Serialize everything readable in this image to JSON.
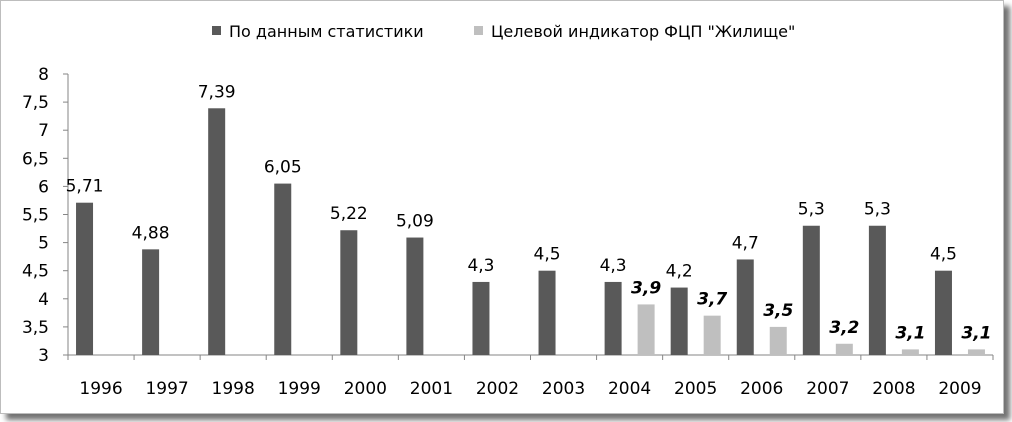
{
  "chart_data": {
    "type": "bar",
    "categories": [
      "1996",
      "1997",
      "1998",
      "1999",
      "2000",
      "2001",
      "2002",
      "2003",
      "2004",
      "2005",
      "2006",
      "2007",
      "2008",
      "2009"
    ],
    "series": [
      {
        "name": "По данным статистики",
        "color": "#595959",
        "values": [
          5.71,
          4.88,
          7.39,
          6.05,
          5.22,
          5.09,
          4.3,
          4.5,
          4.3,
          4.2,
          4.7,
          5.3,
          5.3,
          4.5
        ],
        "labels": [
          "5,71",
          "4,88",
          "7,39",
          "6,05",
          "5,22",
          "5,09",
          "4,3",
          "4,5",
          "4,3",
          "4,2",
          "4,7",
          "5,3",
          "5,3",
          "4,5"
        ]
      },
      {
        "name": "Целевой индикатор ФЦП \"Жилище\"",
        "color": "#bfbfbf",
        "values": [
          null,
          null,
          null,
          null,
          null,
          null,
          null,
          null,
          3.9,
          3.7,
          3.5,
          3.2,
          3.1,
          3.1
        ],
        "labels": [
          "",
          "",
          "",
          "",
          "",
          "",
          "",
          "",
          "3,9",
          "3,7",
          "3,5",
          "3,2",
          "3,1",
          "3,1"
        ]
      }
    ],
    "y_ticks": [
      "3",
      "3,5",
      "4",
      "4,5",
      "5",
      "5,5",
      "6",
      "6,5",
      "7",
      "7,5",
      "8"
    ],
    "ylim": [
      3,
      8
    ],
    "legend_position": "top",
    "grid": false
  }
}
